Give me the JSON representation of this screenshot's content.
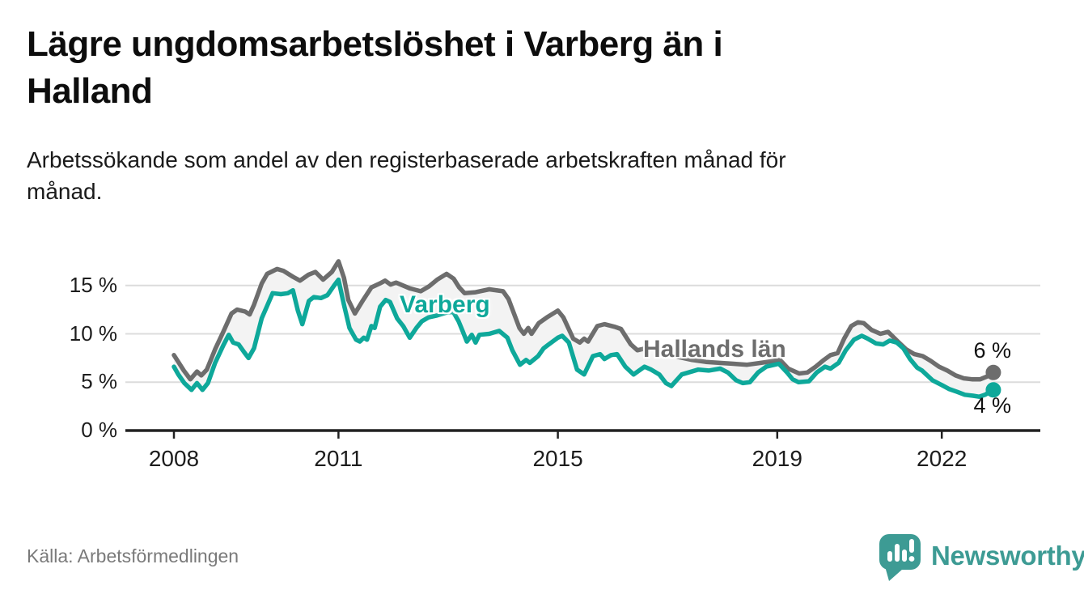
{
  "header": {
    "title": "Lägre ungdomsarbetslöshet i Varberg än i\nHalland",
    "subtitle": "Arbetssökande som andel av den registerbaserade arbetskraften månad för\nmånad."
  },
  "footer": {
    "source": "Källa: Arbetsförmedlingen",
    "brand": "Newsworthy",
    "logo_icon": "speech-bubble-bar-chart-icon"
  },
  "colors": {
    "varberg": "#0ea89a",
    "halland": "#6d6d6d",
    "band_fill": "#f3f3f3",
    "gridline": "#dcdcdc",
    "axis": "#222222",
    "text": "#1d1d1d",
    "brand_teal": "#3d9b94"
  },
  "chart_data": {
    "type": "line",
    "title": "Lägre ungdomsarbetslöshet i Varberg än i Halland",
    "subtitle": "Arbetssökande som andel av den registerbaserade arbetskraften månad för månad.",
    "unit": "%",
    "grid": true,
    "legend_position": "inline-labels",
    "xlim": [
      2007.1,
      2023.8
    ],
    "ylim": [
      0,
      18.5
    ],
    "x_ticks": [
      2008,
      2011,
      2015,
      2019,
      2022
    ],
    "x_tick_labels": [
      "2008",
      "2011",
      "2015",
      "2019",
      "2022"
    ],
    "y_ticks": [
      0,
      5,
      10,
      15
    ],
    "y_tick_labels": [
      "0 %",
      "5 %",
      "10 %",
      "15 %"
    ],
    "series": [
      {
        "name": "Hallands län",
        "color_key": "halland",
        "end_label": "6 %",
        "end_value": 6,
        "points": [
          [
            2008.0,
            7.8
          ],
          [
            2008.08,
            7.1
          ],
          [
            2008.18,
            6.2
          ],
          [
            2008.3,
            5.3
          ],
          [
            2008.42,
            6.1
          ],
          [
            2008.5,
            5.7
          ],
          [
            2008.6,
            6.3
          ],
          [
            2008.75,
            8.4
          ],
          [
            2008.9,
            10.2
          ],
          [
            2009.05,
            12.1
          ],
          [
            2009.15,
            12.5
          ],
          [
            2009.3,
            12.3
          ],
          [
            2009.38,
            12.0
          ],
          [
            2009.46,
            13.0
          ],
          [
            2009.6,
            15.2
          ],
          [
            2009.7,
            16.2
          ],
          [
            2009.88,
            16.7
          ],
          [
            2010.0,
            16.5
          ],
          [
            2010.17,
            15.9
          ],
          [
            2010.3,
            15.5
          ],
          [
            2010.45,
            16.1
          ],
          [
            2010.58,
            16.4
          ],
          [
            2010.72,
            15.6
          ],
          [
            2010.88,
            16.4
          ],
          [
            2011.0,
            17.5
          ],
          [
            2011.1,
            15.8
          ],
          [
            2011.18,
            13.5
          ],
          [
            2011.3,
            12.1
          ],
          [
            2011.45,
            13.5
          ],
          [
            2011.6,
            14.8
          ],
          [
            2011.75,
            15.2
          ],
          [
            2011.85,
            15.5
          ],
          [
            2011.95,
            15.1
          ],
          [
            2012.05,
            15.3
          ],
          [
            2012.3,
            14.7
          ],
          [
            2012.5,
            14.4
          ],
          [
            2012.65,
            14.9
          ],
          [
            2012.8,
            15.6
          ],
          [
            2012.97,
            16.2
          ],
          [
            2013.1,
            15.7
          ],
          [
            2013.2,
            14.8
          ],
          [
            2013.3,
            14.2
          ],
          [
            2013.5,
            14.3
          ],
          [
            2013.75,
            14.6
          ],
          [
            2014.0,
            14.4
          ],
          [
            2014.1,
            13.6
          ],
          [
            2014.3,
            10.6
          ],
          [
            2014.38,
            10.0
          ],
          [
            2014.46,
            10.6
          ],
          [
            2014.52,
            10.0
          ],
          [
            2014.65,
            11.1
          ],
          [
            2014.8,
            11.7
          ],
          [
            2015.0,
            12.4
          ],
          [
            2015.1,
            11.7
          ],
          [
            2015.28,
            9.5
          ],
          [
            2015.4,
            9.1
          ],
          [
            2015.48,
            9.5
          ],
          [
            2015.55,
            9.2
          ],
          [
            2015.72,
            10.8
          ],
          [
            2015.85,
            11.0
          ],
          [
            2016.05,
            10.7
          ],
          [
            2016.15,
            10.5
          ],
          [
            2016.33,
            8.9
          ],
          [
            2016.45,
            8.3
          ],
          [
            2016.6,
            8.5
          ],
          [
            2016.75,
            8.6
          ],
          [
            2016.95,
            8.1
          ],
          [
            2017.2,
            7.6
          ],
          [
            2017.45,
            7.3
          ],
          [
            2017.7,
            7.1
          ],
          [
            2017.95,
            7.0
          ],
          [
            2018.2,
            6.9
          ],
          [
            2018.45,
            6.8
          ],
          [
            2018.7,
            7.0
          ],
          [
            2019.05,
            7.3
          ],
          [
            2019.2,
            6.4
          ],
          [
            2019.4,
            5.9
          ],
          [
            2019.55,
            6.0
          ],
          [
            2019.7,
            6.6
          ],
          [
            2019.85,
            7.3
          ],
          [
            2019.97,
            7.8
          ],
          [
            2020.1,
            8.0
          ],
          [
            2020.22,
            9.5
          ],
          [
            2020.35,
            10.8
          ],
          [
            2020.47,
            11.2
          ],
          [
            2020.58,
            11.1
          ],
          [
            2020.72,
            10.4
          ],
          [
            2020.88,
            10.0
          ],
          [
            2021.02,
            10.2
          ],
          [
            2021.2,
            9.2
          ],
          [
            2021.35,
            8.4
          ],
          [
            2021.5,
            7.9
          ],
          [
            2021.65,
            7.7
          ],
          [
            2021.8,
            7.2
          ],
          [
            2021.95,
            6.6
          ],
          [
            2022.1,
            6.2
          ],
          [
            2022.25,
            5.7
          ],
          [
            2022.4,
            5.4
          ],
          [
            2022.55,
            5.3
          ],
          [
            2022.7,
            5.3
          ],
          [
            2022.83,
            5.6
          ],
          [
            2022.94,
            6.0
          ]
        ]
      },
      {
        "name": "Varberg",
        "color_key": "varberg",
        "end_label": "4 %",
        "end_value": 4,
        "points": [
          [
            2008.0,
            6.6
          ],
          [
            2008.08,
            5.8
          ],
          [
            2008.19,
            4.9
          ],
          [
            2008.32,
            4.2
          ],
          [
            2008.42,
            4.9
          ],
          [
            2008.52,
            4.2
          ],
          [
            2008.62,
            4.9
          ],
          [
            2008.75,
            7.0
          ],
          [
            2008.9,
            8.8
          ],
          [
            2009.0,
            9.9
          ],
          [
            2009.08,
            9.1
          ],
          [
            2009.18,
            8.9
          ],
          [
            2009.28,
            8.1
          ],
          [
            2009.36,
            7.5
          ],
          [
            2009.46,
            8.5
          ],
          [
            2009.6,
            11.6
          ],
          [
            2009.7,
            12.9
          ],
          [
            2009.8,
            14.2
          ],
          [
            2009.95,
            14.1
          ],
          [
            2010.08,
            14.2
          ],
          [
            2010.17,
            14.5
          ],
          [
            2010.26,
            12.4
          ],
          [
            2010.34,
            11.0
          ],
          [
            2010.46,
            13.4
          ],
          [
            2010.55,
            13.8
          ],
          [
            2010.68,
            13.7
          ],
          [
            2010.8,
            14.0
          ],
          [
            2010.92,
            15.0
          ],
          [
            2011.0,
            15.6
          ],
          [
            2011.1,
            13.0
          ],
          [
            2011.2,
            10.6
          ],
          [
            2011.32,
            9.4
          ],
          [
            2011.39,
            9.2
          ],
          [
            2011.46,
            9.6
          ],
          [
            2011.52,
            9.4
          ],
          [
            2011.6,
            10.8
          ],
          [
            2011.66,
            10.6
          ],
          [
            2011.76,
            12.8
          ],
          [
            2011.86,
            13.5
          ],
          [
            2011.94,
            13.3
          ],
          [
            2012.07,
            11.6
          ],
          [
            2012.18,
            10.8
          ],
          [
            2012.3,
            9.6
          ],
          [
            2012.42,
            10.6
          ],
          [
            2012.52,
            11.3
          ],
          [
            2012.64,
            11.7
          ],
          [
            2012.8,
            11.9
          ],
          [
            2012.97,
            12.2
          ],
          [
            2013.09,
            12.3
          ],
          [
            2013.19,
            11.3
          ],
          [
            2013.27,
            10.2
          ],
          [
            2013.34,
            9.2
          ],
          [
            2013.43,
            9.9
          ],
          [
            2013.5,
            9.1
          ],
          [
            2013.57,
            9.9
          ],
          [
            2013.75,
            10.0
          ],
          [
            2013.93,
            10.3
          ],
          [
            2014.08,
            9.6
          ],
          [
            2014.17,
            8.3
          ],
          [
            2014.31,
            6.8
          ],
          [
            2014.42,
            7.3
          ],
          [
            2014.49,
            7.0
          ],
          [
            2014.64,
            7.7
          ],
          [
            2014.74,
            8.5
          ],
          [
            2014.81,
            8.8
          ],
          [
            2015.0,
            9.6
          ],
          [
            2015.08,
            9.8
          ],
          [
            2015.2,
            9.1
          ],
          [
            2015.35,
            6.3
          ],
          [
            2015.48,
            5.8
          ],
          [
            2015.64,
            7.7
          ],
          [
            2015.77,
            7.9
          ],
          [
            2015.85,
            7.4
          ],
          [
            2015.97,
            7.8
          ],
          [
            2016.08,
            7.9
          ],
          [
            2016.23,
            6.6
          ],
          [
            2016.38,
            5.8
          ],
          [
            2016.58,
            6.6
          ],
          [
            2016.7,
            6.3
          ],
          [
            2016.85,
            5.8
          ],
          [
            2016.97,
            4.9
          ],
          [
            2017.07,
            4.6
          ],
          [
            2017.26,
            5.8
          ],
          [
            2017.56,
            6.3
          ],
          [
            2017.75,
            6.2
          ],
          [
            2017.96,
            6.4
          ],
          [
            2018.1,
            6.0
          ],
          [
            2018.25,
            5.2
          ],
          [
            2018.37,
            4.9
          ],
          [
            2018.5,
            5.0
          ],
          [
            2018.65,
            6.0
          ],
          [
            2018.8,
            6.6
          ],
          [
            2019.03,
            6.9
          ],
          [
            2019.18,
            6.0
          ],
          [
            2019.28,
            5.3
          ],
          [
            2019.39,
            5.0
          ],
          [
            2019.58,
            5.1
          ],
          [
            2019.72,
            6.0
          ],
          [
            2019.87,
            6.6
          ],
          [
            2019.97,
            6.4
          ],
          [
            2020.12,
            7.0
          ],
          [
            2020.25,
            8.3
          ],
          [
            2020.4,
            9.4
          ],
          [
            2020.54,
            9.8
          ],
          [
            2020.65,
            9.5
          ],
          [
            2020.8,
            9.0
          ],
          [
            2020.93,
            8.9
          ],
          [
            2021.05,
            9.3
          ],
          [
            2021.18,
            9.1
          ],
          [
            2021.3,
            8.5
          ],
          [
            2021.42,
            7.4
          ],
          [
            2021.55,
            6.5
          ],
          [
            2021.64,
            6.2
          ],
          [
            2021.83,
            5.2
          ],
          [
            2022.0,
            4.7
          ],
          [
            2022.13,
            4.3
          ],
          [
            2022.28,
            4.0
          ],
          [
            2022.42,
            3.7
          ],
          [
            2022.57,
            3.6
          ],
          [
            2022.68,
            3.5
          ],
          [
            2022.79,
            3.7
          ],
          [
            2022.94,
            4.2
          ]
        ]
      }
    ]
  }
}
